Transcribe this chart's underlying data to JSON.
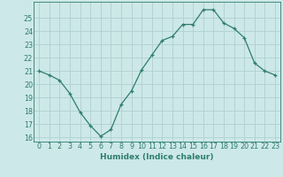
{
  "x": [
    0,
    1,
    2,
    3,
    4,
    5,
    6,
    7,
    8,
    9,
    10,
    11,
    12,
    13,
    14,
    15,
    16,
    17,
    18,
    19,
    20,
    21,
    22,
    23
  ],
  "y": [
    21.0,
    20.7,
    20.3,
    19.3,
    17.9,
    16.9,
    16.1,
    16.6,
    18.5,
    19.5,
    21.1,
    22.2,
    23.3,
    23.6,
    24.5,
    24.5,
    25.6,
    25.6,
    24.6,
    24.2,
    23.5,
    21.6,
    21.0,
    20.7
  ],
  "line_color": "#2e7d6e",
  "marker": "+",
  "xlabel": "Humidex (Indice chaleur)",
  "ylim_min": 15.7,
  "ylim_max": 26.2,
  "xlim_min": -0.5,
  "xlim_max": 23.5,
  "yticks": [
    16,
    17,
    18,
    19,
    20,
    21,
    22,
    23,
    24,
    25
  ],
  "xticks": [
    0,
    1,
    2,
    3,
    4,
    5,
    6,
    7,
    8,
    9,
    10,
    11,
    12,
    13,
    14,
    15,
    16,
    17,
    18,
    19,
    20,
    21,
    22,
    23
  ],
  "bg_color": "#cde8e8",
  "grid_color": "#b0d0d0",
  "line_width": 0.9,
  "marker_size": 3,
  "tick_color": "#2e7d6e",
  "label_color": "#2e7d6e",
  "font_size_label": 6.5,
  "font_size_tick": 5.8
}
